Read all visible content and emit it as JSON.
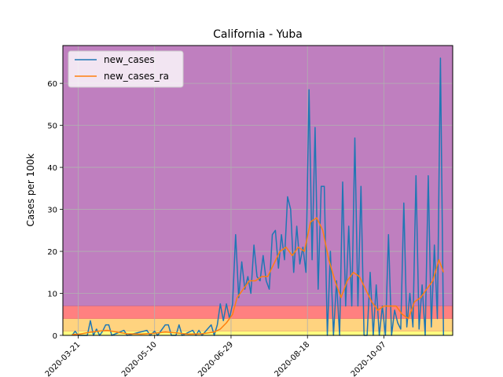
{
  "chart_data": {
    "type": "line",
    "title": "California - Yuba",
    "xlabel": "",
    "ylabel": "Cases per 100k",
    "x_start": "2020-03-11",
    "x_end": "2020-11-21",
    "ylim": [
      0,
      69
    ],
    "y_ticks": [
      0,
      10,
      20,
      30,
      40,
      50,
      60
    ],
    "x_ticks": [
      "2020-03-21",
      "2020-05-10",
      "2020-06-29",
      "2020-08-18",
      "2020-10-07"
    ],
    "grid": true,
    "legend_position": "top-left",
    "risk_bands": [
      {
        "from": 0,
        "to": 1,
        "color": "#ffff80"
      },
      {
        "from": 1,
        "to": 4,
        "color": "#ffd37f"
      },
      {
        "from": 4,
        "to": 7,
        "color": "#ff8080"
      },
      {
        "from": 7,
        "to": 69,
        "color": "#bf7fbf"
      }
    ],
    "series": [
      {
        "name": "new_cases",
        "color": "#1f77b4",
        "points": [
          [
            "2020-03-17",
            0
          ],
          [
            "2020-03-19",
            1
          ],
          [
            "2020-03-21",
            0
          ],
          [
            "2020-03-27",
            0
          ],
          [
            "2020-03-29",
            3.5
          ],
          [
            "2020-03-31",
            0
          ],
          [
            "2020-04-02",
            1.5
          ],
          [
            "2020-04-04",
            0
          ],
          [
            "2020-04-06",
            1
          ],
          [
            "2020-04-08",
            2.5
          ],
          [
            "2020-04-10",
            2.5
          ],
          [
            "2020-04-12",
            0
          ],
          [
            "2020-04-20",
            1.2
          ],
          [
            "2020-04-22",
            0
          ],
          [
            "2020-05-05",
            1.2
          ],
          [
            "2020-05-07",
            0
          ],
          [
            "2020-05-10",
            1
          ],
          [
            "2020-05-12",
            0
          ],
          [
            "2020-05-17",
            2.5
          ],
          [
            "2020-05-19",
            2.5
          ],
          [
            "2020-05-21",
            0
          ],
          [
            "2020-05-24",
            0
          ],
          [
            "2020-05-26",
            2.5
          ],
          [
            "2020-05-28",
            0
          ],
          [
            "2020-06-04",
            1.2
          ],
          [
            "2020-06-06",
            0
          ],
          [
            "2020-06-08",
            1.2
          ],
          [
            "2020-06-10",
            0
          ],
          [
            "2020-06-16",
            2.5
          ],
          [
            "2020-06-18",
            0
          ],
          [
            "2020-06-20",
            2.5
          ],
          [
            "2020-06-22",
            7.5
          ],
          [
            "2020-06-24",
            3.5
          ],
          [
            "2020-06-26",
            7.5
          ],
          [
            "2020-06-28",
            4
          ],
          [
            "2020-06-30",
            7.5
          ],
          [
            "2020-07-02",
            24
          ],
          [
            "2020-07-04",
            9
          ],
          [
            "2020-07-06",
            17.5
          ],
          [
            "2020-07-08",
            11
          ],
          [
            "2020-07-10",
            14
          ],
          [
            "2020-07-12",
            10
          ],
          [
            "2020-07-14",
            21.5
          ],
          [
            "2020-07-16",
            14
          ],
          [
            "2020-07-18",
            13
          ],
          [
            "2020-07-20",
            19
          ],
          [
            "2020-07-22",
            13
          ],
          [
            "2020-07-24",
            11
          ],
          [
            "2020-07-26",
            24
          ],
          [
            "2020-07-28",
            25
          ],
          [
            "2020-07-30",
            16
          ],
          [
            "2020-08-01",
            24
          ],
          [
            "2020-08-03",
            18
          ],
          [
            "2020-08-05",
            33
          ],
          [
            "2020-08-07",
            30
          ],
          [
            "2020-08-09",
            15
          ],
          [
            "2020-08-11",
            26
          ],
          [
            "2020-08-13",
            17
          ],
          [
            "2020-08-15",
            21
          ],
          [
            "2020-08-17",
            15
          ],
          [
            "2020-08-19",
            58.5
          ],
          [
            "2020-08-21",
            18
          ],
          [
            "2020-08-23",
            49.5
          ],
          [
            "2020-08-25",
            11
          ],
          [
            "2020-08-27",
            35.5
          ],
          [
            "2020-08-29",
            35.5
          ],
          [
            "2020-08-31",
            0
          ],
          [
            "2020-09-02",
            20
          ],
          [
            "2020-09-04",
            0
          ],
          [
            "2020-09-06",
            13
          ],
          [
            "2020-09-08",
            0
          ],
          [
            "2020-09-10",
            36.5
          ],
          [
            "2020-09-12",
            7
          ],
          [
            "2020-09-14",
            26
          ],
          [
            "2020-09-16",
            7
          ],
          [
            "2020-09-18",
            47
          ],
          [
            "2020-09-20",
            7
          ],
          [
            "2020-09-22",
            35.5
          ],
          [
            "2020-09-24",
            0
          ],
          [
            "2020-09-26",
            0
          ],
          [
            "2020-09-28",
            15
          ],
          [
            "2020-09-30",
            0
          ],
          [
            "2020-10-02",
            12
          ],
          [
            "2020-10-04",
            0
          ],
          [
            "2020-10-06",
            7
          ],
          [
            "2020-10-08",
            0
          ],
          [
            "2020-10-10",
            24
          ],
          [
            "2020-10-12",
            0
          ],
          [
            "2020-10-14",
            6
          ],
          [
            "2020-10-16",
            3
          ],
          [
            "2020-10-18",
            1.5
          ],
          [
            "2020-10-20",
            31.5
          ],
          [
            "2020-10-22",
            2
          ],
          [
            "2020-10-24",
            10
          ],
          [
            "2020-10-26",
            2
          ],
          [
            "2020-10-28",
            38
          ],
          [
            "2020-10-30",
            1.5
          ],
          [
            "2020-11-01",
            12
          ],
          [
            "2020-11-03",
            0
          ],
          [
            "2020-11-05",
            38
          ],
          [
            "2020-11-07",
            2
          ],
          [
            "2020-11-09",
            21.5
          ],
          [
            "2020-11-11",
            4
          ],
          [
            "2020-11-13",
            66
          ],
          [
            "2020-11-15",
            0
          ]
        ]
      },
      {
        "name": "new_cases_ra",
        "color": "#ff7f0e",
        "points": [
          [
            "2020-03-17",
            0.2
          ],
          [
            "2020-03-22",
            0.3
          ],
          [
            "2020-03-28",
            0.7
          ],
          [
            "2020-04-03",
            1
          ],
          [
            "2020-04-09",
            1.2
          ],
          [
            "2020-04-15",
            0.8
          ],
          [
            "2020-04-22",
            0.4
          ],
          [
            "2020-05-01",
            0.3
          ],
          [
            "2020-05-10",
            0.5
          ],
          [
            "2020-05-17",
            0.8
          ],
          [
            "2020-05-24",
            0.6
          ],
          [
            "2020-06-01",
            0.3
          ],
          [
            "2020-06-10",
            0.4
          ],
          [
            "2020-06-18",
            0.8
          ],
          [
            "2020-06-22",
            1.5
          ],
          [
            "2020-06-26",
            3
          ],
          [
            "2020-06-30",
            5
          ],
          [
            "2020-07-03",
            9
          ],
          [
            "2020-07-07",
            11
          ],
          [
            "2020-07-11",
            13
          ],
          [
            "2020-07-15",
            13
          ],
          [
            "2020-07-19",
            14
          ],
          [
            "2020-07-23",
            14
          ],
          [
            "2020-07-27",
            17
          ],
          [
            "2020-07-31",
            20
          ],
          [
            "2020-08-04",
            21
          ],
          [
            "2020-08-08",
            19
          ],
          [
            "2020-08-12",
            21
          ],
          [
            "2020-08-16",
            20
          ],
          [
            "2020-08-20",
            27
          ],
          [
            "2020-08-24",
            28
          ],
          [
            "2020-08-28",
            25
          ],
          [
            "2020-09-01",
            18
          ],
          [
            "2020-09-05",
            13
          ],
          [
            "2020-09-09",
            9
          ],
          [
            "2020-09-13",
            13
          ],
          [
            "2020-09-17",
            15
          ],
          [
            "2020-09-21",
            14
          ],
          [
            "2020-09-25",
            11
          ],
          [
            "2020-09-29",
            8
          ],
          [
            "2020-10-03",
            6
          ],
          [
            "2020-10-07",
            7
          ],
          [
            "2020-10-11",
            7
          ],
          [
            "2020-10-15",
            7
          ],
          [
            "2020-10-19",
            5
          ],
          [
            "2020-10-23",
            4
          ],
          [
            "2020-10-27",
            8
          ],
          [
            "2020-10-31",
            9
          ],
          [
            "2020-11-04",
            11
          ],
          [
            "2020-11-08",
            13
          ],
          [
            "2020-11-12",
            18
          ],
          [
            "2020-11-15",
            15
          ]
        ]
      }
    ]
  }
}
